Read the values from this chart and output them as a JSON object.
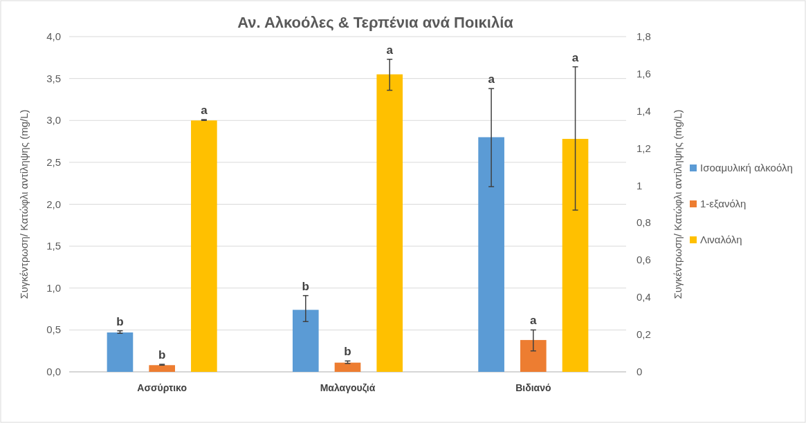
{
  "chart_data": {
    "type": "bar",
    "title": "Αν. Αλκοόλες & Τερπένια ανά Ποικιλία",
    "ylabel": "Συγκέντρωση/ Κατώφλι αντίληψης (mg/L)",
    "y2label": "Συγκέντρωση/ Κατώφλι αντίληψης (mg/L)",
    "categories": [
      "Ασσύρτικο",
      "Μαλαγουζιά",
      "Βιδιανό"
    ],
    "series": [
      {
        "name": "Ισοαμυλική αλκοόλη",
        "color": "#5b9bd5",
        "values": [
          0.47,
          0.74,
          2.8
        ],
        "errors": [
          [
            0.46,
            0.49
          ],
          [
            0.6,
            0.91
          ],
          [
            2.21,
            3.38
          ]
        ]
      },
      {
        "name": "1-εξανόλη",
        "color": "#ed7d31",
        "values": [
          0.08,
          0.11,
          0.38
        ],
        "errors": [
          [
            0.08,
            0.09
          ],
          [
            0.1,
            0.13
          ],
          [
            0.25,
            0.5
          ]
        ]
      },
      {
        "name": "Λιναλόλη",
        "color": "#ffc000",
        "values": [
          3.0,
          3.55,
          2.78
        ],
        "errors": [
          [
            3.0,
            3.01
          ],
          [
            3.36,
            3.73
          ],
          [
            1.93,
            3.64
          ]
        ]
      }
    ],
    "ylim": [
      0,
      4
    ],
    "yticks": [
      {
        "value": 0,
        "label": "0,0"
      },
      {
        "value": 0.5,
        "label": "0,5"
      },
      {
        "value": 1,
        "label": "1,0"
      },
      {
        "value": 1.5,
        "label": "1,5"
      },
      {
        "value": 2,
        "label": "2,0"
      },
      {
        "value": 2.5,
        "label": "2,5"
      },
      {
        "value": 3,
        "label": "3,0"
      },
      {
        "value": 3.5,
        "label": "3,5"
      },
      {
        "value": 4,
        "label": "4,0"
      }
    ],
    "y2lim": [
      0,
      1.8
    ],
    "y2ticks": [
      0,
      {
        "value": 0.2,
        "label": "0,2"
      },
      {
        "value": 0.4,
        "label": "0,4"
      },
      {
        "value": 0.6,
        "label": "0,6"
      },
      {
        "value": 0.8,
        "label": "0,8"
      },
      1,
      {
        "value": 1.2,
        "label": "1,2"
      },
      {
        "value": 1.4,
        "label": "1,4"
      },
      {
        "value": 1.6,
        "label": "1,6"
      },
      {
        "value": 1.8,
        "label": "1,8"
      }
    ],
    "grid": "y",
    "legend": "right",
    "annotations": [
      "b",
      "b",
      "a",
      "b",
      "b",
      "a",
      "a",
      "a",
      "a"
    ]
  }
}
